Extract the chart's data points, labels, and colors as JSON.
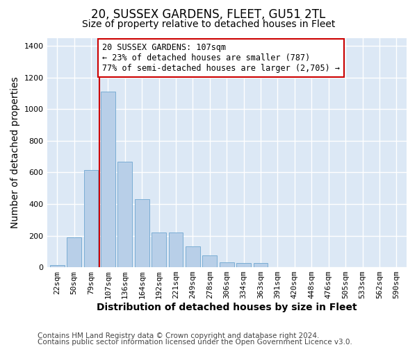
{
  "title": "20, SUSSEX GARDENS, FLEET, GU51 2TL",
  "subtitle": "Size of property relative to detached houses in Fleet",
  "xlabel": "Distribution of detached houses by size in Fleet",
  "ylabel": "Number of detached properties",
  "categories": [
    "22sqm",
    "50sqm",
    "79sqm",
    "107sqm",
    "136sqm",
    "164sqm",
    "192sqm",
    "221sqm",
    "249sqm",
    "278sqm",
    "306sqm",
    "334sqm",
    "363sqm",
    "391sqm",
    "420sqm",
    "448sqm",
    "476sqm",
    "505sqm",
    "533sqm",
    "562sqm",
    "590sqm"
  ],
  "bar_heights": [
    15,
    190,
    615,
    1110,
    670,
    430,
    220,
    220,
    130,
    75,
    30,
    25,
    25,
    0,
    0,
    0,
    0,
    0,
    0,
    0,
    0
  ],
  "vline_x_index": 2.5,
  "vline_color": "#cc0000",
  "annotation_text": "20 SUSSEX GARDENS: 107sqm\n← 23% of detached houses are smaller (787)\n77% of semi-detached houses are larger (2,705) →",
  "annotation_box_color": "#ffffff",
  "annotation_box_edge_color": "#cc0000",
  "bar_color": "#b8cfe8",
  "bar_edge_color": "#7aadd4",
  "ylim": [
    0,
    1450
  ],
  "yticks": [
    0,
    200,
    400,
    600,
    800,
    1000,
    1200,
    1400
  ],
  "footer_line1": "Contains HM Land Registry data © Crown copyright and database right 2024.",
  "footer_line2": "Contains public sector information licensed under the Open Government Licence v3.0.",
  "bg_color": "#ffffff",
  "plot_bg_color": "#dce8f5",
  "grid_color": "#ffffff",
  "title_fontsize": 12,
  "subtitle_fontsize": 10,
  "label_fontsize": 10,
  "tick_fontsize": 8,
  "annot_fontsize": 8.5,
  "footer_fontsize": 7.5
}
